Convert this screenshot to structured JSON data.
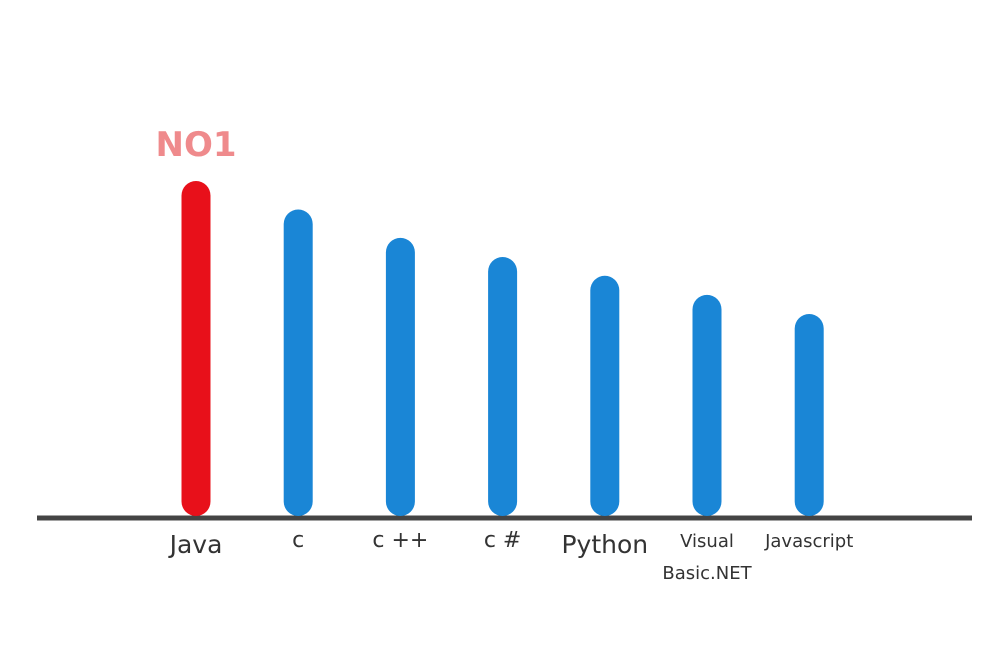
{
  "colors": {
    "highlight": "#e8101a",
    "bar": "#1a86d6",
    "axis": "#444444",
    "annotation": "#ef8a8c",
    "label": "#333333"
  },
  "chart_data": {
    "type": "bar",
    "title": "",
    "xlabel": "",
    "ylabel": "",
    "categories": [
      "Java",
      "c",
      "c ++",
      "c #",
      "Python",
      "Visual Basic.NET",
      "Javascript"
    ],
    "category_label_lines": [
      [
        "Java"
      ],
      [
        "c"
      ],
      [
        "c ++"
      ],
      [
        "c #"
      ],
      [
        "Python"
      ],
      [
        "Visual",
        "Basic.NET"
      ],
      [
        "Javascript"
      ]
    ],
    "values": [
      100,
      91.5,
      83,
      77.3,
      71.7,
      66,
      60.3
    ],
    "ylim": [
      0,
      100
    ],
    "grid": false,
    "legend": "none",
    "highlight_index": 0,
    "annotation": "NO1"
  }
}
